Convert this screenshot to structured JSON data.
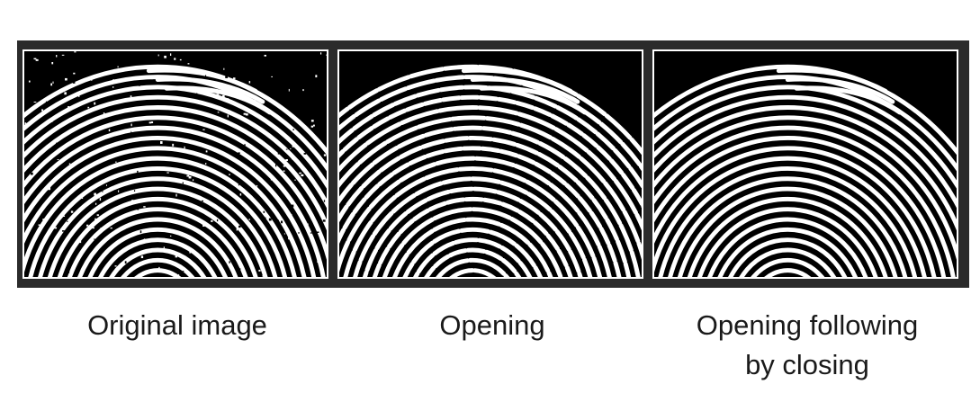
{
  "figure": {
    "panels": [
      {
        "caption": "Original image",
        "image": "fingerprint-noisy",
        "noise": true,
        "breaks": false
      },
      {
        "caption": "Opening",
        "image": "fingerprint-opened",
        "noise": false,
        "breaks": true
      },
      {
        "caption": "Opening following by closing",
        "caption_lines": [
          "Opening following",
          "by closing"
        ],
        "image": "fingerprint-opened-closed",
        "noise": false,
        "breaks": false
      }
    ]
  },
  "colors": {
    "frame": "#2b2b2b",
    "ridge": "#ffffff",
    "background": "#000000",
    "text": "#1a1a1a"
  }
}
